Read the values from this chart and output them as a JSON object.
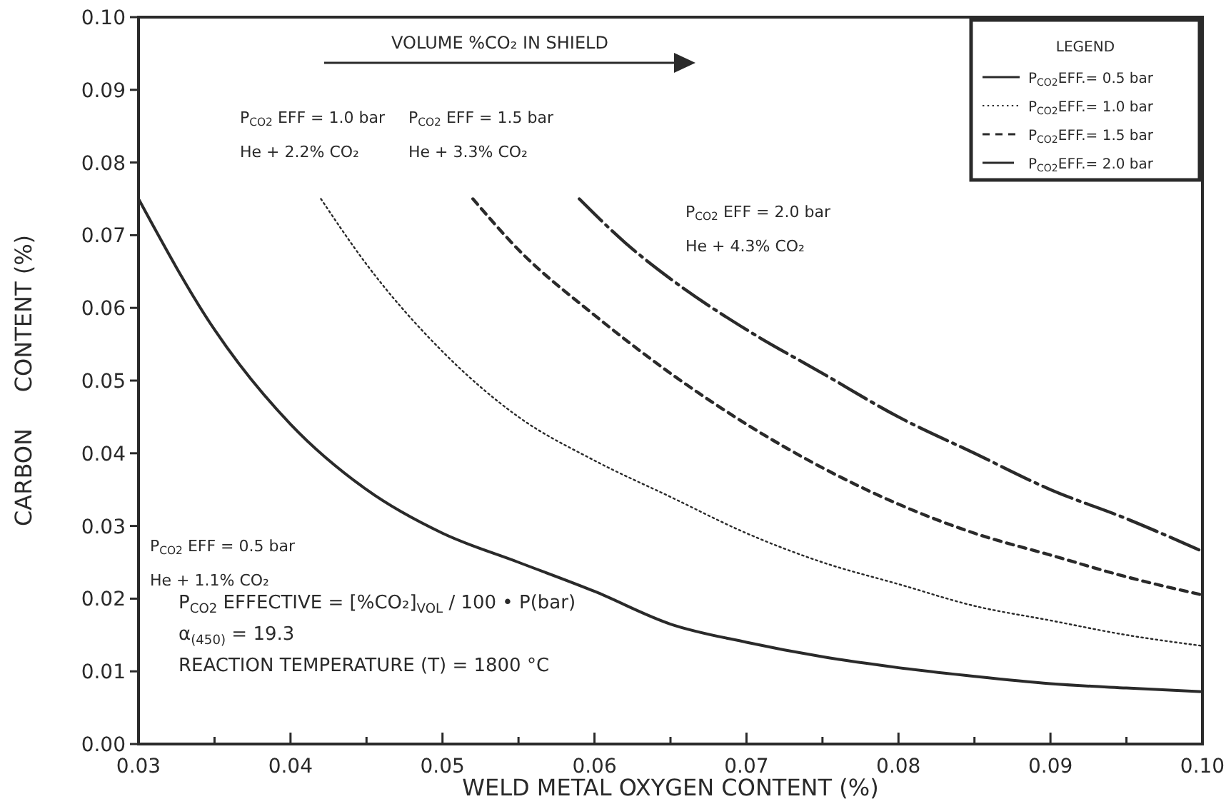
{
  "chart_data": {
    "type": "line",
    "xlabel": "WELD METAL OXYGEN CONTENT (%)",
    "ylabel": "CARBON     CONTENT (%)",
    "legend_title": "LEGEND",
    "legend": "top right",
    "grid": false,
    "marker": "none",
    "xlim": [
      0.03,
      0.1
    ],
    "ylim": [
      0,
      0.1
    ],
    "xticks": [
      {
        "value": 0.03,
        "label": "0.03"
      },
      {
        "value": 0.035,
        "label": null
      },
      {
        "value": 0.04,
        "label": "0.04"
      },
      {
        "value": 0.045,
        "label": null
      },
      {
        "value": 0.05,
        "label": "0.05"
      },
      {
        "value": 0.055,
        "label": null
      },
      {
        "value": 0.06,
        "label": "0.06"
      },
      {
        "value": 0.065,
        "label": null
      },
      {
        "value": 0.07,
        "label": "0.07"
      },
      {
        "value": 0.075,
        "label": null
      },
      {
        "value": 0.08,
        "label": "0.08"
      },
      {
        "value": 0.085,
        "label": null
      },
      {
        "value": 0.09,
        "label": "0.09"
      },
      {
        "value": 0.095,
        "label": null
      },
      {
        "value": 0.1,
        "label": "0.10"
      }
    ],
    "yticks": [
      {
        "value": 0,
        "label": "0.00"
      },
      {
        "value": 0.01,
        "label": "0.01"
      },
      {
        "value": 0.02,
        "label": "0.02"
      },
      {
        "value": 0.03,
        "label": "0.03"
      },
      {
        "value": 0.04,
        "label": "0.04"
      },
      {
        "value": 0.05,
        "label": "0.05"
      },
      {
        "value": 0.06,
        "label": "0.06"
      },
      {
        "value": 0.07,
        "label": "0.07"
      },
      {
        "value": 0.08,
        "label": "0.08"
      },
      {
        "value": 0.09,
        "label": "0.09"
      },
      {
        "value": 0.1,
        "label": "0.10"
      }
    ],
    "series": [
      {
        "name": "P$_{CO2}$EFF.= 0.5 bar",
        "color": "#2a2a2a",
        "line_style": "solid",
        "x": [
          0.03,
          0.035,
          0.04,
          0.045,
          0.05,
          0.055,
          0.06,
          0.065,
          0.07,
          0.075,
          0.08,
          0.085,
          0.09,
          0.095,
          0.1
        ],
        "values": [
          0.075,
          0.057,
          0.044,
          0.035,
          0.029,
          0.025,
          0.021,
          0.0165,
          0.014,
          0.012,
          0.0105,
          0.0093,
          0.0083,
          0.0077,
          0.0072
        ]
      },
      {
        "name": "P$_{CO2}$EFF.= 1.0 bar",
        "color": "#2a2a2a",
        "line_style": "dotted",
        "x": [
          0.042,
          0.045,
          0.05,
          0.055,
          0.06,
          0.065,
          0.07,
          0.075,
          0.08,
          0.085,
          0.09,
          0.095,
          0.1
        ],
        "values": [
          0.075,
          0.066,
          0.054,
          0.045,
          0.039,
          0.034,
          0.029,
          0.025,
          0.022,
          0.019,
          0.017,
          0.015,
          0.0135
        ]
      },
      {
        "name": "P$_{CO2}$EFF.= 1.5 bar",
        "color": "#2a2a2a",
        "line_style": "dashed",
        "x": [
          0.052,
          0.055,
          0.06,
          0.065,
          0.07,
          0.075,
          0.08,
          0.085,
          0.09,
          0.095,
          0.1
        ],
        "values": [
          0.075,
          0.068,
          0.059,
          0.051,
          0.044,
          0.038,
          0.033,
          0.029,
          0.026,
          0.023,
          0.0205
        ]
      },
      {
        "name": "P$_{CO2}$EFF.= 2.0 bar",
        "color": "#2a2a2a",
        "line_style": "dashdot",
        "x": [
          0.059,
          0.062,
          0.065,
          0.07,
          0.075,
          0.08,
          0.085,
          0.09,
          0.095,
          0.1
        ],
        "values": [
          0.075,
          0.069,
          0.064,
          0.057,
          0.051,
          0.045,
          0.04,
          0.035,
          0.031,
          0.0265
        ]
      }
    ],
    "annotations": [
      "P$_{CO2}$ EFF = 1.0 bar\nHe + 2.2% CO₂",
      "P$_{CO2}$ EFF = 1.5 bar\nHe + 3.3% CO₂",
      "P$_{CO2}$ EFF = 2.0 bar\nHe + 4.3% CO₂",
      "P$_{CO2}$ EFF = 0.5 bar\nHe + 1.1% CO₂",
      "VOLUME %CO₂ IN SHIELD",
      "P$_{CO2}$ EFFECTIVE = [%CO₂]$_{VOL}$ / 100 • P(bar)\nα$_{(450)}$ = 19.3\nREACTION TEMPERATURE (T) = 1800 °C"
    ]
  }
}
